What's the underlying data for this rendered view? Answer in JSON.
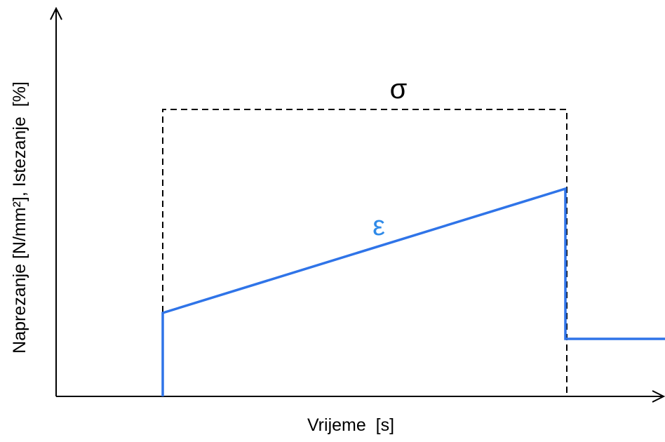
{
  "diagram": {
    "curves": {
      "stress": "σ",
      "strain": "ε"
    },
    "axes": {
      "x_label": "Vrijeme  [s]",
      "y_label": "Naprezanje [N/mm²], Istezanje  [%]"
    }
  }
}
